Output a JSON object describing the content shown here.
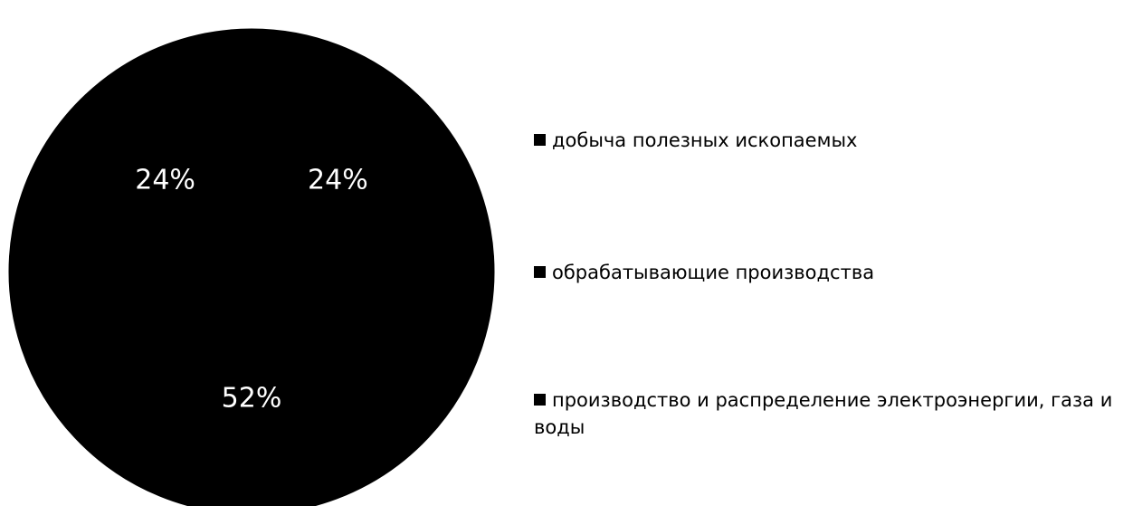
{
  "chart_data": {
    "type": "pie",
    "categories": [
      "добыча полезных ископаемых",
      "обрабатывающие производства",
      "производство и распределение электроэнергии, газа и воды"
    ],
    "values": [
      24,
      52,
      24
    ],
    "data_labels": [
      "24%",
      "52%",
      "24%"
    ],
    "colors": [
      "#000000",
      "#000000",
      "#000000"
    ],
    "legend_position": "right"
  }
}
